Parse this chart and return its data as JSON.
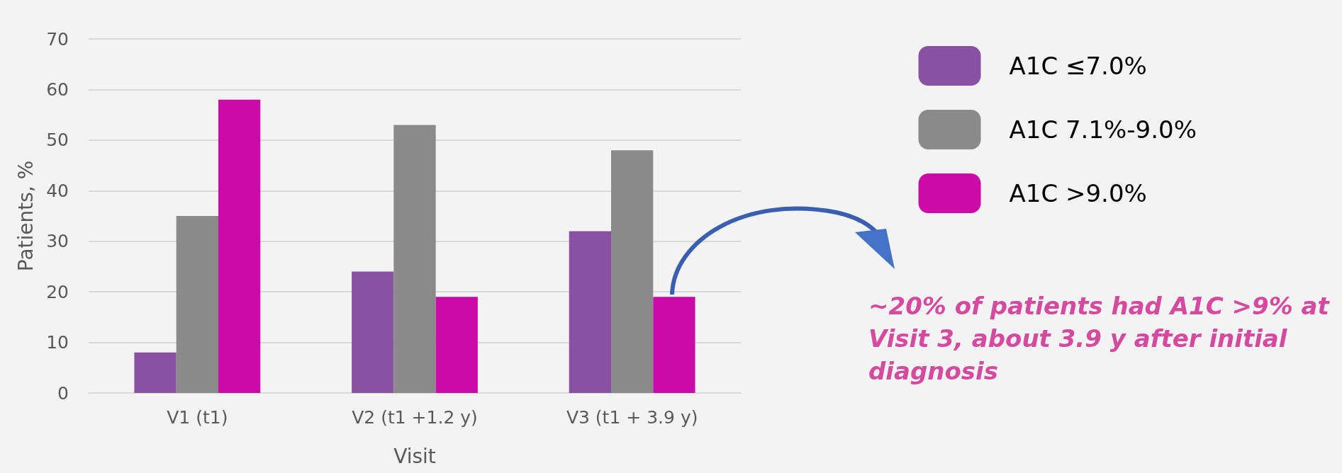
{
  "chart_data": {
    "type": "bar",
    "categories": [
      "V1 (t1)",
      "V2 (t1 +1.2 y)",
      "V3 (t1 + 3.9 y)"
    ],
    "series": [
      {
        "name": "A1C ≤7.0%",
        "color": "#8951a1",
        "values": [
          8,
          24,
          32
        ]
      },
      {
        "name": "A1C 7.1%-9.0%",
        "color": "#8a8a8a",
        "values": [
          35,
          53,
          48
        ]
      },
      {
        "name": "A1C >9.0%",
        "color": "#cc0aa8",
        "values": [
          58,
          19,
          19
        ]
      }
    ],
    "xlabel": "Visit",
    "ylabel": "Patients, %",
    "ylim": [
      0,
      70
    ],
    "yticks": [
      0,
      10,
      20,
      30,
      40,
      50,
      60,
      70
    ],
    "grid": "y",
    "legend": "top right",
    "annotations": [
      "~20% of patients had A1C >9% at Visit 3, about 3.9 y after initial diagnosis"
    ]
  }
}
